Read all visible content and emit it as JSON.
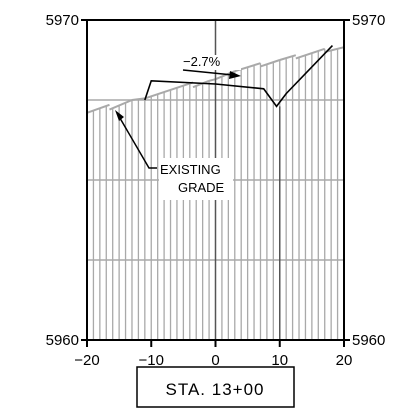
{
  "chart_data": {
    "type": "line",
    "title": "",
    "xlabel": "",
    "ylabel": "",
    "x_ticks": [
      "-20",
      "-10",
      "0",
      "10",
      "20"
    ],
    "xlim": [
      -20,
      20
    ],
    "ylim": [
      5960,
      5970
    ],
    "y_labels": {
      "left_top": "5970",
      "left_bottom": "5960",
      "right_top": "5970",
      "right_bottom": "5960"
    },
    "grid": true,
    "series": [
      {
        "role": "existing_grade",
        "x": [
          -20,
          -16.5,
          -16.5,
          -13,
          -11,
          -11,
          -3.5,
          -3.5,
          -1,
          0,
          0,
          3,
          7,
          7,
          10,
          12.5,
          12.5,
          17,
          17,
          20
        ],
        "y": [
          5967.1,
          5967.35,
          5967.2,
          5967.5,
          5967.55,
          5967.55,
          5968.05,
          5967.9,
          5968.1,
          5968.15,
          5968.15,
          5968.4,
          5968.65,
          5968.55,
          5968.75,
          5968.9,
          5968.8,
          5969.1,
          5969.0,
          5969.15
        ]
      },
      {
        "role": "proposed_grade",
        "x": [
          -11,
          -10,
          0,
          7.5,
          9.5,
          11,
          18.2
        ],
        "y": [
          5967.5,
          5968.1,
          5968.0,
          5967.85,
          5967.3,
          5967.7,
          5969.2
        ]
      }
    ],
    "annotations": {
      "slope_label": "−2.7%",
      "grade_label_1": "EXISTING",
      "grade_label_2": "GRADE",
      "station": "STA. 13+00"
    }
  }
}
